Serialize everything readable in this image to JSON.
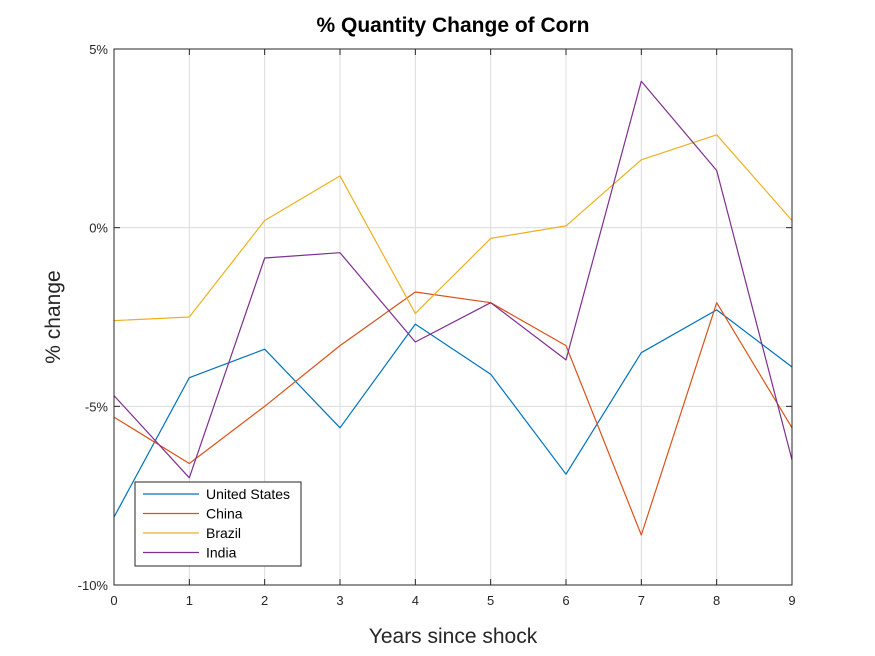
{
  "chart_data": {
    "type": "line",
    "title": "% Quantity Change of Corn",
    "xlabel": "Years since shock",
    "ylabel": "% change",
    "x": [
      0,
      1,
      2,
      3,
      4,
      5,
      6,
      7,
      8,
      9
    ],
    "xlim": [
      0,
      9
    ],
    "ylim": [
      -10,
      5
    ],
    "xticks": [
      "0",
      "1",
      "2",
      "3",
      "4",
      "5",
      "6",
      "7",
      "8",
      "9"
    ],
    "yticks": [
      {
        "value": 5,
        "label": "5%"
      },
      {
        "value": 0,
        "label": "0%"
      },
      {
        "value": -5,
        "label": "-5%"
      },
      {
        "value": -10,
        "label": "-10%"
      }
    ],
    "grid": true,
    "legend_position": "bottom-left",
    "series": [
      {
        "name": "United States",
        "color": "#0072BD",
        "values": [
          -8.1,
          -4.2,
          -3.4,
          -5.6,
          -2.7,
          -4.1,
          -6.9,
          -3.5,
          -2.3,
          -3.9
        ]
      },
      {
        "name": "China",
        "color": "#D95319",
        "values": [
          -5.3,
          -6.6,
          -5.0,
          -3.3,
          -1.8,
          -2.1,
          -3.3,
          -8.6,
          -2.1,
          -5.6
        ]
      },
      {
        "name": "Brazil",
        "color": "#EDB120",
        "values": [
          -2.6,
          -2.5,
          0.2,
          1.45,
          -2.4,
          -0.3,
          0.05,
          1.9,
          2.6,
          0.2
        ]
      },
      {
        "name": "India",
        "color": "#7E2F8E",
        "values": [
          -4.7,
          -7.0,
          -0.85,
          -0.7,
          -3.2,
          -2.1,
          -3.7,
          4.1,
          1.6,
          -6.5
        ]
      }
    ]
  }
}
